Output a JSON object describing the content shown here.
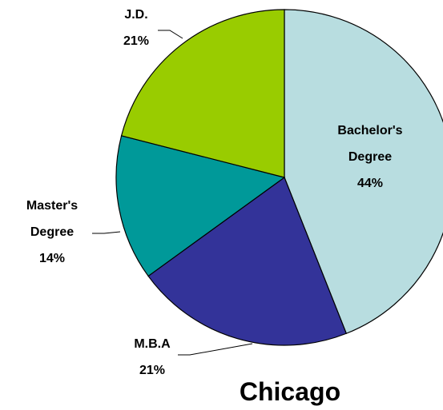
{
  "chart_data": {
    "type": "pie",
    "title": "Chicago",
    "categories": [
      "Bachelor's Degree",
      "M.B.A",
      "Master's Degree",
      "J.D."
    ],
    "values": [
      44,
      21,
      14,
      21
    ],
    "value_labels": [
      "44%",
      "21%",
      "14%",
      "21%"
    ],
    "colors": [
      "#b8dde0",
      "#333399",
      "#009999",
      "#99cc00"
    ]
  }
}
